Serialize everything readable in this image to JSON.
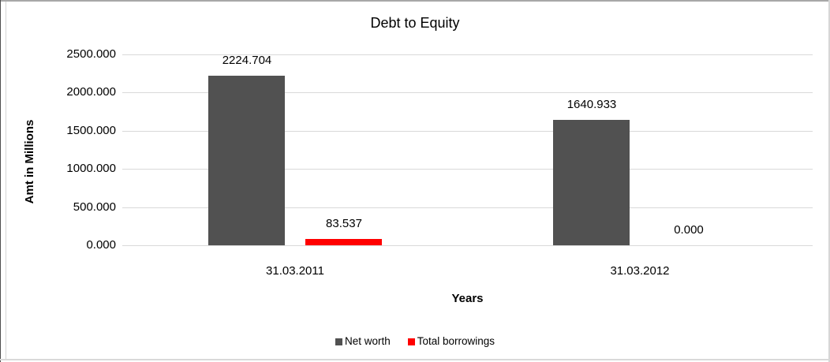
{
  "chart_data": {
    "type": "bar",
    "title": "Debt to Equity",
    "xlabel": "Years",
    "ylabel": "Amt in Millions",
    "categories": [
      "31.03.2011",
      "31.03.2012"
    ],
    "series": [
      {
        "name": "Net worth",
        "color": "#515151",
        "values": [
          2224.704,
          1640.933
        ],
        "data_labels": [
          "2224.704",
          "1640.933"
        ]
      },
      {
        "name": "Total borrowings",
        "color": "#ff0000",
        "values": [
          83.537,
          0.0
        ],
        "data_labels": [
          "83.537",
          "0.000"
        ]
      }
    ],
    "y_ticks": [
      "2500.000",
      "2000.000",
      "1500.000",
      "1000.000",
      "500.000",
      "0.000"
    ],
    "ylim": [
      0,
      2500
    ],
    "grid": true,
    "legend_position": "bottom"
  },
  "colors": {
    "gridline": "#d9d9d9",
    "net_worth_bar": "#515151",
    "total_borrowings_bar": "#ff0000",
    "text": "#000000"
  }
}
